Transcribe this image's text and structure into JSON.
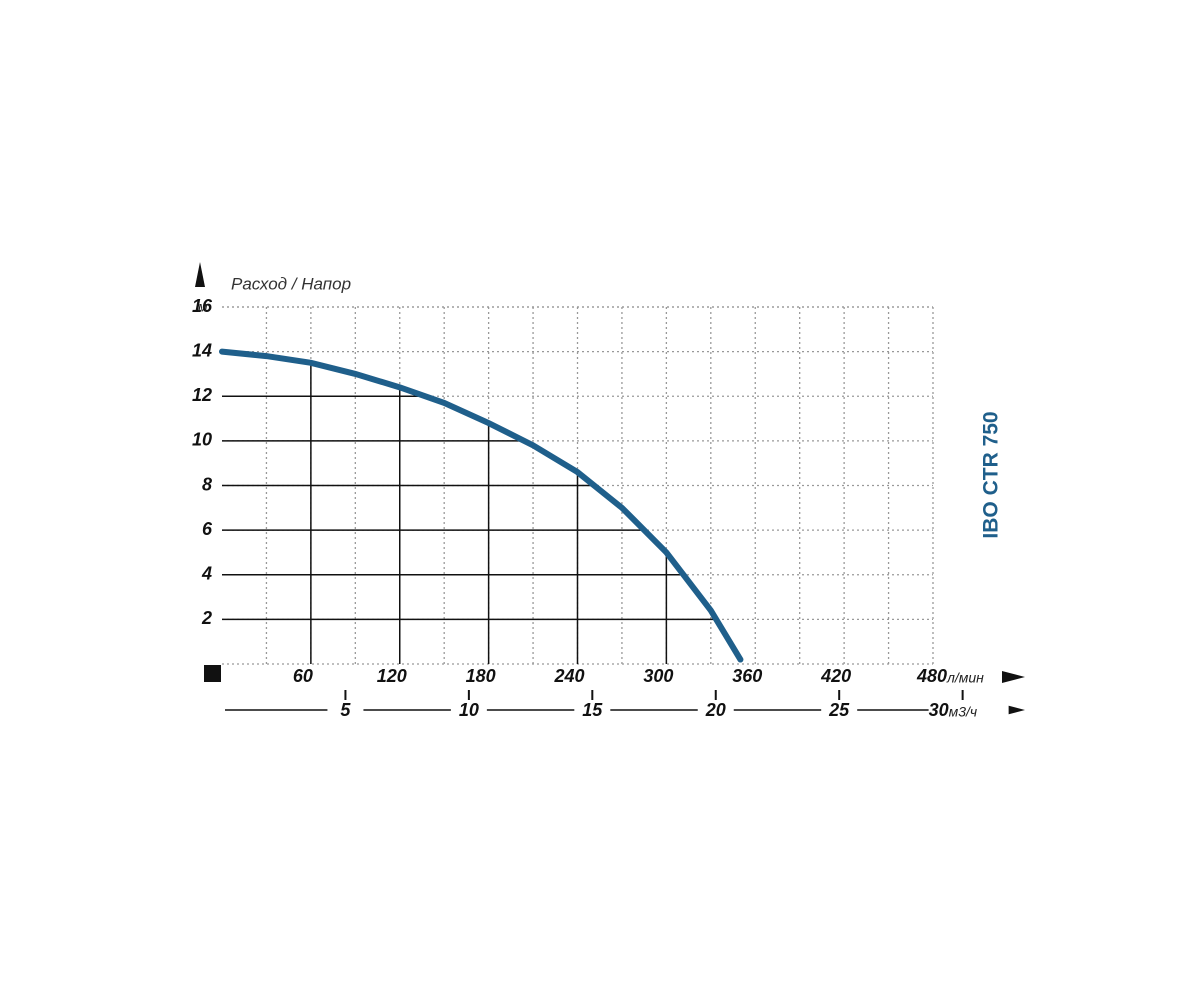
{
  "chart_data": {
    "type": "line",
    "axis_title": "Расход / Напор",
    "y_unit": "м",
    "x_unit": "л/мин",
    "x2_unit": "м3/ч",
    "x": [
      0,
      30,
      60,
      90,
      120,
      150,
      180,
      210,
      240,
      270,
      300,
      330,
      350
    ],
    "series": [
      {
        "name": "IBO CTR 750",
        "color": "#1f5f8b",
        "values": [
          14,
          13.8,
          13.5,
          13.0,
          12.4,
          11.7,
          10.8,
          9.8,
          8.6,
          7.0,
          5.0,
          2.4,
          0.2
        ]
      }
    ],
    "xlim": [
      0,
      480
    ],
    "xticks": [
      60,
      120,
      180,
      240,
      300,
      360,
      420,
      480
    ],
    "xminor": 30,
    "ylim": [
      0,
      16
    ],
    "yticks": [
      2,
      4,
      6,
      8,
      10,
      12,
      14,
      16
    ],
    "x2lim": [
      0,
      28.8
    ],
    "x2ticks": [
      5,
      10,
      15,
      20,
      25,
      30
    ],
    "grid": true
  }
}
